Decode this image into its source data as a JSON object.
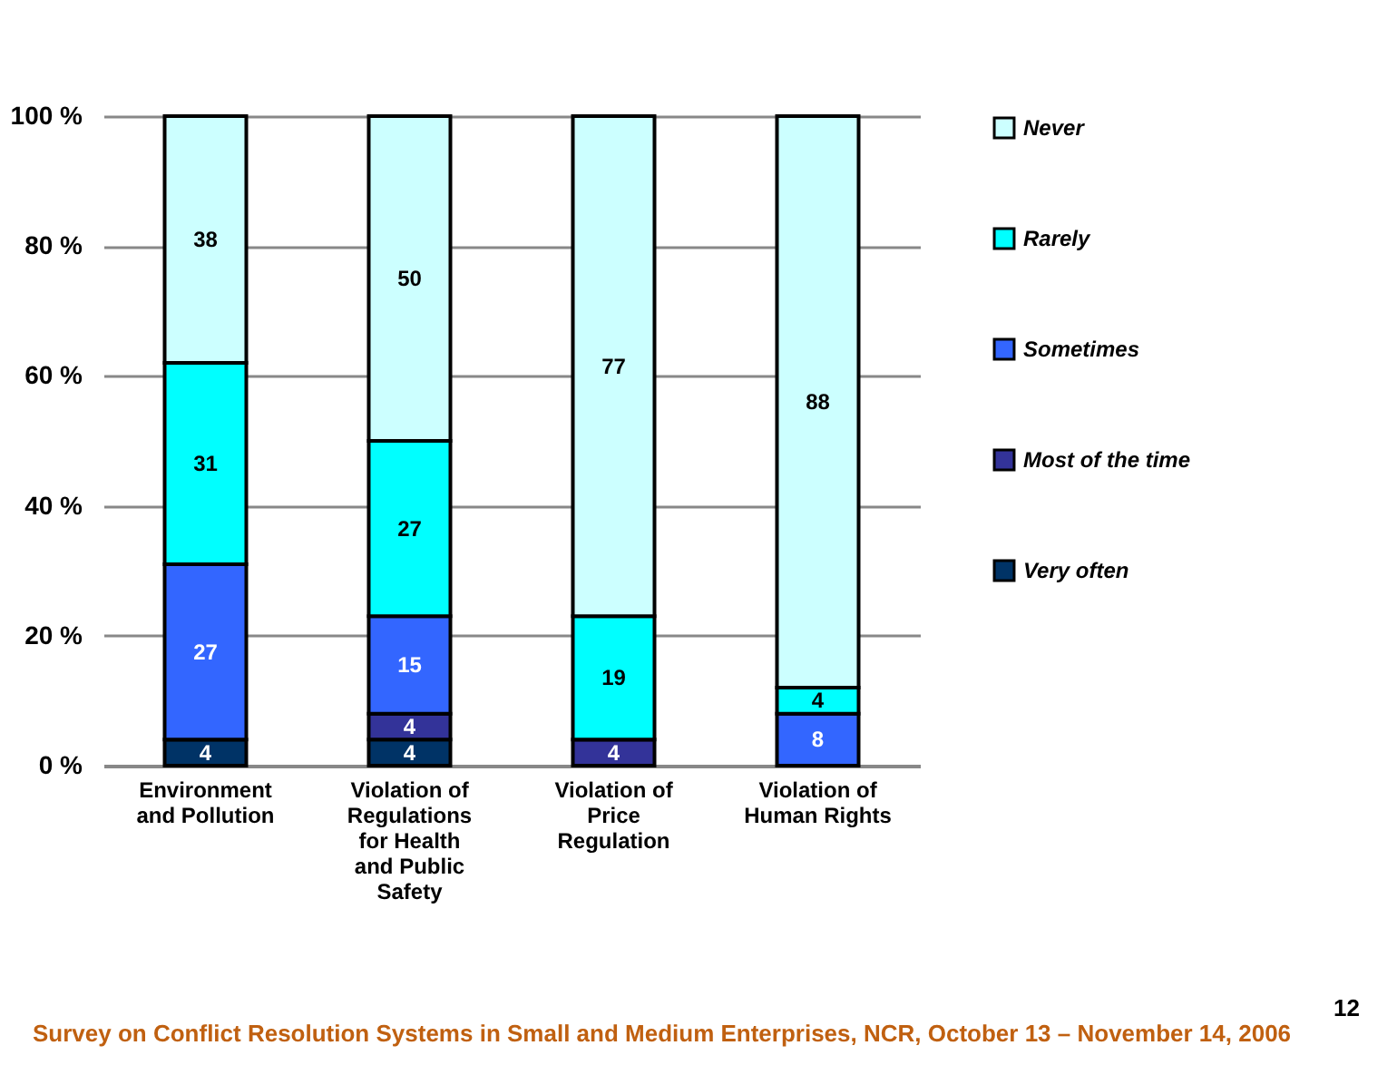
{
  "chart_data": {
    "type": "bar",
    "stacked": true,
    "categories": [
      "Environment and Pollution",
      "Violation of Regulations for Health and Public Safety",
      "Violation of Price Regulation",
      "Violation of Human Rights"
    ],
    "series": [
      {
        "name": "Very often",
        "color": "#003366",
        "values": [
          4,
          4,
          0,
          0
        ],
        "value_labels": [
          "4",
          "4",
          null,
          null
        ]
      },
      {
        "name": "Most of the time",
        "color": "#333399",
        "values": [
          0,
          4,
          4,
          0
        ],
        "value_labels": [
          null,
          "4",
          "4",
          null
        ]
      },
      {
        "name": "Sometimes",
        "color": "#3366ff",
        "values": [
          27,
          15,
          0,
          8
        ],
        "value_labels": [
          "27",
          "15",
          null,
          "8"
        ]
      },
      {
        "name": "Rarely",
        "color": "#00ffff",
        "values": [
          31,
          27,
          19,
          4
        ],
        "value_labels": [
          "31",
          "27",
          "19",
          "4"
        ]
      },
      {
        "name": "Never",
        "color": "#ccffff",
        "values": [
          38,
          50,
          77,
          88
        ],
        "value_labels": [
          "38",
          "50",
          "77",
          "88"
        ]
      }
    ],
    "ylim": [
      0,
      100
    ],
    "yticks": [
      {
        "value": 0,
        "label": "0 %"
      },
      {
        "value": 20,
        "label": "20 %"
      },
      {
        "value": 40,
        "label": "40 %"
      },
      {
        "value": 60,
        "label": "60 %"
      },
      {
        "value": 80,
        "label": "80 %"
      },
      {
        "value": 100,
        "label": "100 %"
      }
    ],
    "grid": "y",
    "legend": "right",
    "annotations": [
      "Survey on Conflict Resolution Systems in Small and Medium Enterprises, NCR, October 13 – November 14, 2006",
      "12"
    ]
  }
}
